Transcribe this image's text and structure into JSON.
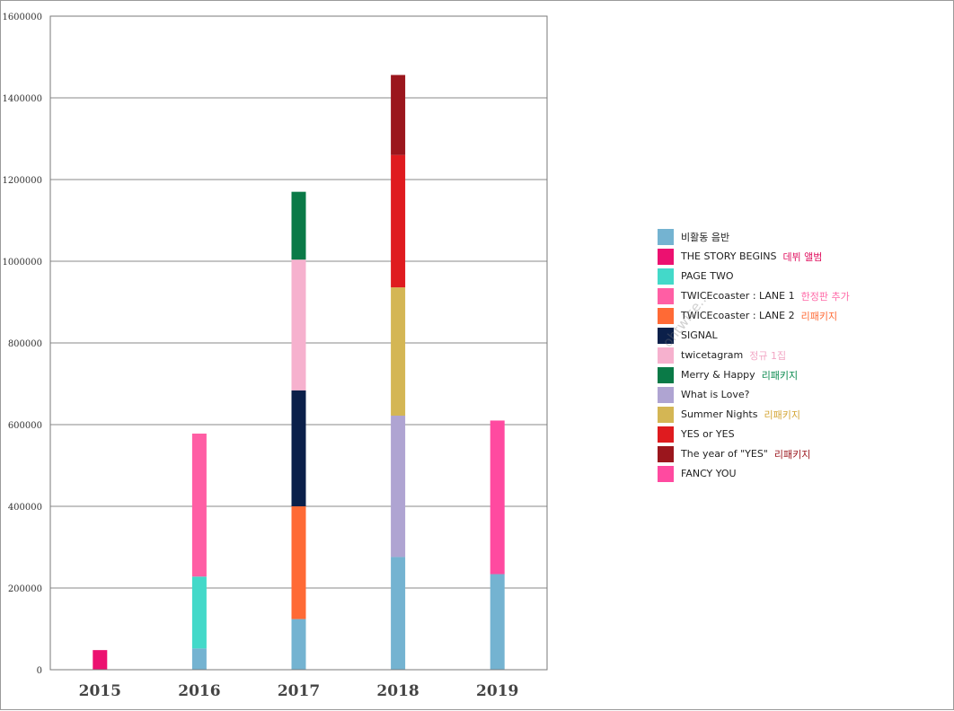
{
  "chart_data": {
    "type": "bar",
    "stacked": true,
    "categories": [
      "2015",
      "2016",
      "2017",
      "2018",
      "2019"
    ],
    "ylim": [
      0,
      1600000
    ],
    "yticks": [
      0,
      200000,
      400000,
      600000,
      800000,
      1000000,
      1200000,
      1400000,
      1600000
    ],
    "grid": true,
    "legend_position": "right",
    "series": [
      {
        "name": "비활동 음반",
        "note": "",
        "color": "#74b3d1",
        "values": [
          0,
          52000,
          124000,
          276000,
          234000
        ]
      },
      {
        "name": "THE STORY BEGINS",
        "note": "데뷔 앨범",
        "color": "#ec1170",
        "note_color": "#e0115f",
        "values": [
          48000,
          0,
          0,
          0,
          0
        ]
      },
      {
        "name": "PAGE TWO",
        "note": "",
        "color": "#43d9c9",
        "values": [
          0,
          176000,
          0,
          0,
          0
        ]
      },
      {
        "name": "TWICEcoaster : LANE 1",
        "note": "한정판 추가",
        "color": "#ff5ea4",
        "note_color": "#ff6aa8",
        "values": [
          0,
          350000,
          0,
          0,
          0
        ]
      },
      {
        "name": "TWICEcoaster : LANE 2",
        "note": "리패키지",
        "color": "#ff6a35",
        "note_color": "#ff6a35",
        "values": [
          0,
          0,
          276000,
          0,
          0
        ]
      },
      {
        "name": "SIGNAL",
        "note": "",
        "color": "#0b204a",
        "values": [
          0,
          0,
          284000,
          0,
          0
        ]
      },
      {
        "name": "twicetagram",
        "note": "정규 1집",
        "color": "#f6b1ce",
        "note_color": "#f2a6c4",
        "values": [
          0,
          0,
          320000,
          0,
          0
        ]
      },
      {
        "name": "Merry & Happy",
        "note": "리패키지",
        "color": "#0a7a47",
        "note_color": "#0a8a4f",
        "values": [
          0,
          0,
          166000,
          0,
          0
        ]
      },
      {
        "name": "What is Love?",
        "note": "",
        "color": "#afa4d2",
        "values": [
          0,
          0,
          0,
          346000,
          0
        ]
      },
      {
        "name": "Summer Nights",
        "note": "리패키지",
        "color": "#d4b654",
        "note_color": "#d4a637",
        "values": [
          0,
          0,
          0,
          314000,
          0
        ]
      },
      {
        "name": "YES or YES",
        "note": "",
        "color": "#df1b1f",
        "values": [
          0,
          0,
          0,
          324000,
          0
        ]
      },
      {
        "name": "The year of \"YES\"",
        "note": "리패키지",
        "color": "#9b161d",
        "note_color": "#9b161d",
        "values": [
          0,
          0,
          0,
          196000,
          0
        ]
      },
      {
        "name": "FANCY YOU",
        "note": "",
        "color": "#ff4aa0",
        "values": [
          0,
          0,
          0,
          0,
          376000
        ]
      }
    ]
  },
  "watermark": "ohtwice..."
}
